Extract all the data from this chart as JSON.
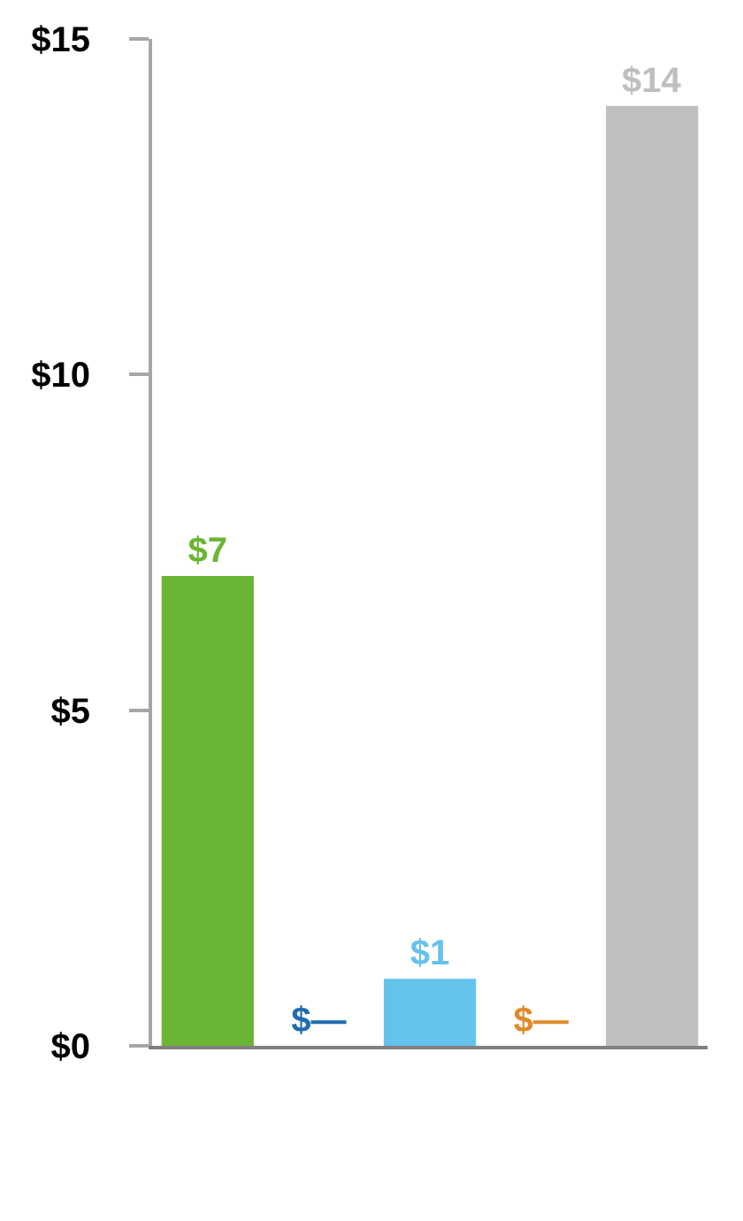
{
  "chart_data": {
    "type": "bar",
    "categories": [
      null,
      null,
      null,
      null,
      null
    ],
    "values": [
      7,
      0,
      1,
      0,
      14
    ],
    "colors": [
      "#6bb535",
      "#1f6bb0",
      "#64c2ec",
      "#e08a2a",
      "#bfbfc0"
    ],
    "value_labels": [
      "$7",
      "$—",
      "$1",
      "$—",
      "$14"
    ],
    "ylim": [
      0,
      15
    ],
    "yticks": [
      {
        "value": 0,
        "label": "$0"
      },
      {
        "value": 5,
        "label": "$5"
      },
      {
        "value": 10,
        "label": "$10"
      },
      {
        "value": 15,
        "label": "$15"
      }
    ],
    "tick_labels": "y",
    "grid": false
  }
}
